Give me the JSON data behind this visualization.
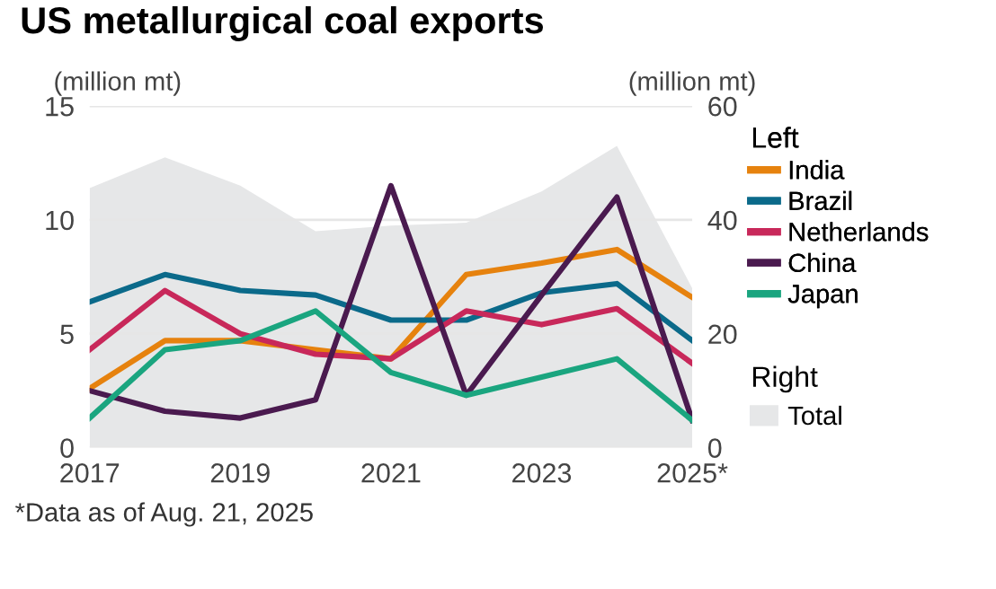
{
  "chart_data": {
    "type": "line",
    "title": "US metallurgical coal exports",
    "ylabel": "(million mt)",
    "y2label": "(million mt)",
    "legend_title": [
      "Left",
      "Right"
    ],
    "x": [
      2017,
      2018,
      2019,
      2020,
      2021,
      2022,
      2023,
      2024,
      2025
    ],
    "series": [
      {
        "name": "Total",
        "type": "area",
        "axis": "y2",
        "color": "#e6e7e8",
        "values": [
          45.6,
          51,
          46,
          38,
          39,
          39.5,
          45,
          53,
          28
        ]
      },
      {
        "name": "India",
        "color": "#e6820e",
        "values": [
          2.6,
          4.7,
          4.7,
          4.3,
          3.9,
          7.6,
          8.1,
          8.7,
          6.6
        ]
      },
      {
        "name": "Brazil",
        "color": "#0b6a8a",
        "values": [
          6.4,
          7.6,
          6.9,
          6.7,
          5.6,
          5.6,
          6.8,
          7.2,
          4.7
        ]
      },
      {
        "name": "Netherlands",
        "color": "#c8285a",
        "values": [
          4.3,
          6.9,
          5.0,
          4.1,
          3.9,
          6.0,
          5.4,
          6.1,
          3.7
        ]
      },
      {
        "name": "China",
        "color": "#4a1a4f",
        "values": [
          2.5,
          1.6,
          1.3,
          2.1,
          11.5,
          2.3,
          6.7,
          11.0,
          1.2
        ]
      },
      {
        "name": "Japan",
        "color": "#1aa57f",
        "values": [
          1.3,
          4.3,
          4.7,
          6.0,
          3.3,
          2.3,
          3.1,
          3.9,
          1.2
        ]
      }
    ],
    "xlim": [
      2017,
      2025
    ],
    "xticks": [
      2017,
      2019,
      2021,
      2023,
      {
        "value": 2025,
        "label": "2025*"
      }
    ],
    "ylim": [
      0,
      15
    ],
    "yticks": [
      0,
      5,
      10,
      15
    ],
    "y2lim": [
      0,
      60
    ],
    "y2ticks": [
      0,
      20,
      40,
      60
    ],
    "grid": "y",
    "legend": "right",
    "marker": "none",
    "line_style": "solid",
    "annotations": [
      "*Data as of Aug. 21, 2025"
    ]
  }
}
